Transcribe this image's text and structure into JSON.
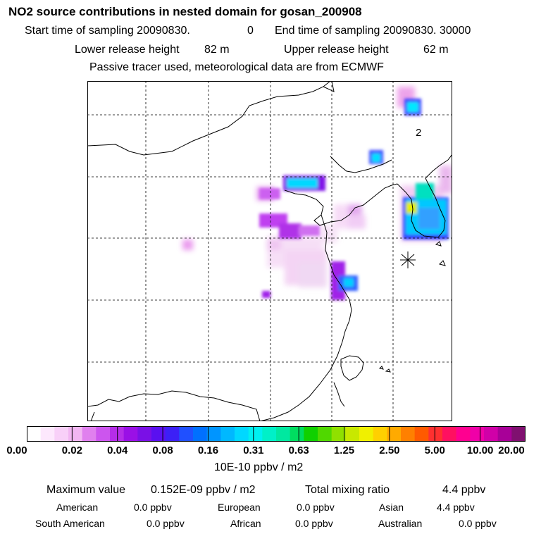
{
  "header": {
    "title": "NO2 source contributions in nested domain for gosan_200908",
    "start_label": "Start time of sampling 20090830.",
    "start_value": "0",
    "end_label": "End time of sampling 20090830. 30000",
    "lower_label": "Lower release height",
    "lower_value": "82 m",
    "upper_label": "Upper release height",
    "upper_value": "62 m",
    "note": "Passive tracer used, meteorological data are from ECMWF"
  },
  "map": {
    "annotation": "2",
    "receptor_marker": "asterisk-receptor"
  },
  "colorbar": {
    "ticks": [
      "0.00",
      "0.02",
      "0.04",
      "0.08",
      "0.16",
      "0.31",
      "0.63",
      "1.25",
      "2.50",
      "5.00",
      "10.00",
      "20.00"
    ],
    "colors": [
      "#ffffff",
      "#fde8fd",
      "#f8d0f8",
      "#f2b6f2",
      "#e080ee",
      "#cc55ee",
      "#b52de8",
      "#9a10e6",
      "#7a10e6",
      "#5a10f0",
      "#3c20f6",
      "#2050ff",
      "#0070ff",
      "#0095ff",
      "#00b8ff",
      "#00d8ff",
      "#00f0f0",
      "#00f0c8",
      "#00e8a0",
      "#00dd60",
      "#10d000",
      "#50d800",
      "#90e000",
      "#c8e800",
      "#f0f000",
      "#ffd000",
      "#ffaa00",
      "#ff8000",
      "#ff5a00",
      "#ff3030",
      "#ff1060",
      "#ff0090",
      "#f000a8",
      "#d000a8",
      "#a80098",
      "#801070"
    ],
    "units": "10E-10 ppbv / m2"
  },
  "stats": {
    "max_label": "Maximum value",
    "max_value": "0.152E-09 ppbv / m2",
    "total_label": "Total mixing ratio",
    "total_value": "4.4 ppbv",
    "regions": [
      {
        "name": "American",
        "value": "0.0 ppbv"
      },
      {
        "name": "European",
        "value": "0.0 ppbv"
      },
      {
        "name": "Asian",
        "value": "4.4 ppbv"
      },
      {
        "name": "South American",
        "value": "0.0 ppbv"
      },
      {
        "name": "African",
        "value": "0.0 ppbv"
      },
      {
        "name": "Australian",
        "value": "0.0 ppbv"
      }
    ]
  }
}
